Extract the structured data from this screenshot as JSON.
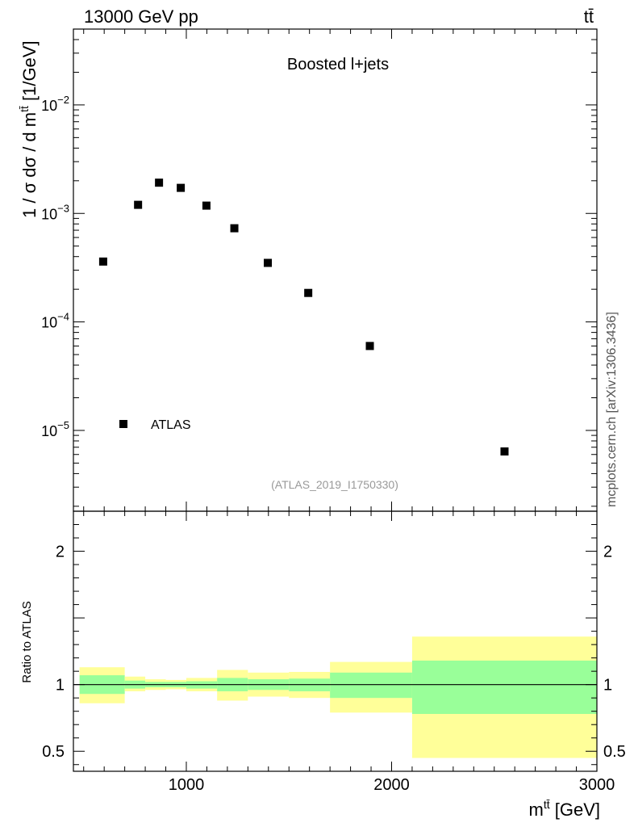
{
  "header": {
    "left": "13000 GeV pp",
    "right": "tt̄"
  },
  "side_label": "mcplots.cern.ch [arXiv:1306.3436]",
  "chart_data": {
    "type": "scatter",
    "title": "Boosted l+jets",
    "analysis_id": "(ATLAS_2019_I1750330)",
    "ylabel": {
      "main": "1 / σ dσ / d m",
      "sup": "tt̄",
      "unit": " [1/GeV]"
    },
    "xlabel": {
      "main": "m",
      "sup": "tt̄",
      "unit": " [GeV]"
    },
    "yscale": "log",
    "ylim": [
      1.8e-06,
      0.05
    ],
    "xlim": [
      450,
      3000
    ],
    "x_ticks": [
      1000,
      2000,
      3000
    ],
    "x_tick_labels": [
      "1000",
      "2000",
      "3000"
    ],
    "y_ticks": [
      1e-05,
      0.0001,
      0.001,
      0.01
    ],
    "y_tick_labels": [
      {
        "base": "10",
        "exp": "−5"
      },
      {
        "base": "10",
        "exp": "−4"
      },
      {
        "base": "10",
        "exp": "−3"
      },
      {
        "base": "10",
        "exp": "−2"
      }
    ],
    "legend": {
      "label": "ATLAS",
      "position": "bottom-left"
    },
    "series": [
      {
        "name": "ATLAS",
        "x": [
          595,
          765,
          867,
          973,
          1098,
          1234,
          1397,
          1594,
          1894,
          2550
        ],
        "y": [
          0.00036,
          0.0012,
          0.00192,
          0.00172,
          0.00118,
          0.00073,
          0.00035,
          0.000185,
          6e-05,
          6.4e-06
        ]
      }
    ],
    "ratio": {
      "ylabel": "Ratio to ATLAS",
      "ylim": [
        0.35,
        2.3
      ],
      "y_ticks": [
        0.5,
        1,
        2
      ],
      "y_tick_labels": [
        "0.5",
        "1",
        "2"
      ],
      "bins": [
        {
          "lo": 480,
          "hi": 700,
          "inner": [
            0.93,
            1.07
          ],
          "outer": [
            0.86,
            1.13
          ]
        },
        {
          "lo": 700,
          "hi": 800,
          "inner": [
            0.97,
            1.03
          ],
          "outer": [
            0.95,
            1.06
          ]
        },
        {
          "lo": 800,
          "hi": 900,
          "inner": [
            0.98,
            1.02
          ],
          "outer": [
            0.96,
            1.04
          ]
        },
        {
          "lo": 900,
          "hi": 1000,
          "inner": [
            0.98,
            1.02
          ],
          "outer": [
            0.965,
            1.035
          ]
        },
        {
          "lo": 1000,
          "hi": 1150,
          "inner": [
            0.97,
            1.025
          ],
          "outer": [
            0.95,
            1.05
          ]
        },
        {
          "lo": 1150,
          "hi": 1300,
          "inner": [
            0.95,
            1.05
          ],
          "outer": [
            0.88,
            1.11
          ]
        },
        {
          "lo": 1300,
          "hi": 1500,
          "inner": [
            0.96,
            1.04
          ],
          "outer": [
            0.91,
            1.09
          ]
        },
        {
          "lo": 1500,
          "hi": 1700,
          "inner": [
            0.95,
            1.045
          ],
          "outer": [
            0.9,
            1.095
          ]
        },
        {
          "lo": 1700,
          "hi": 2100,
          "inner": [
            0.9,
            1.09
          ],
          "outer": [
            0.79,
            1.17
          ]
        },
        {
          "lo": 2100,
          "hi": 3000,
          "inner": [
            0.78,
            1.18
          ],
          "outer": [
            0.45,
            1.36
          ]
        }
      ],
      "colors": {
        "inner": "#99ff99",
        "outer": "#ffff99"
      }
    }
  }
}
